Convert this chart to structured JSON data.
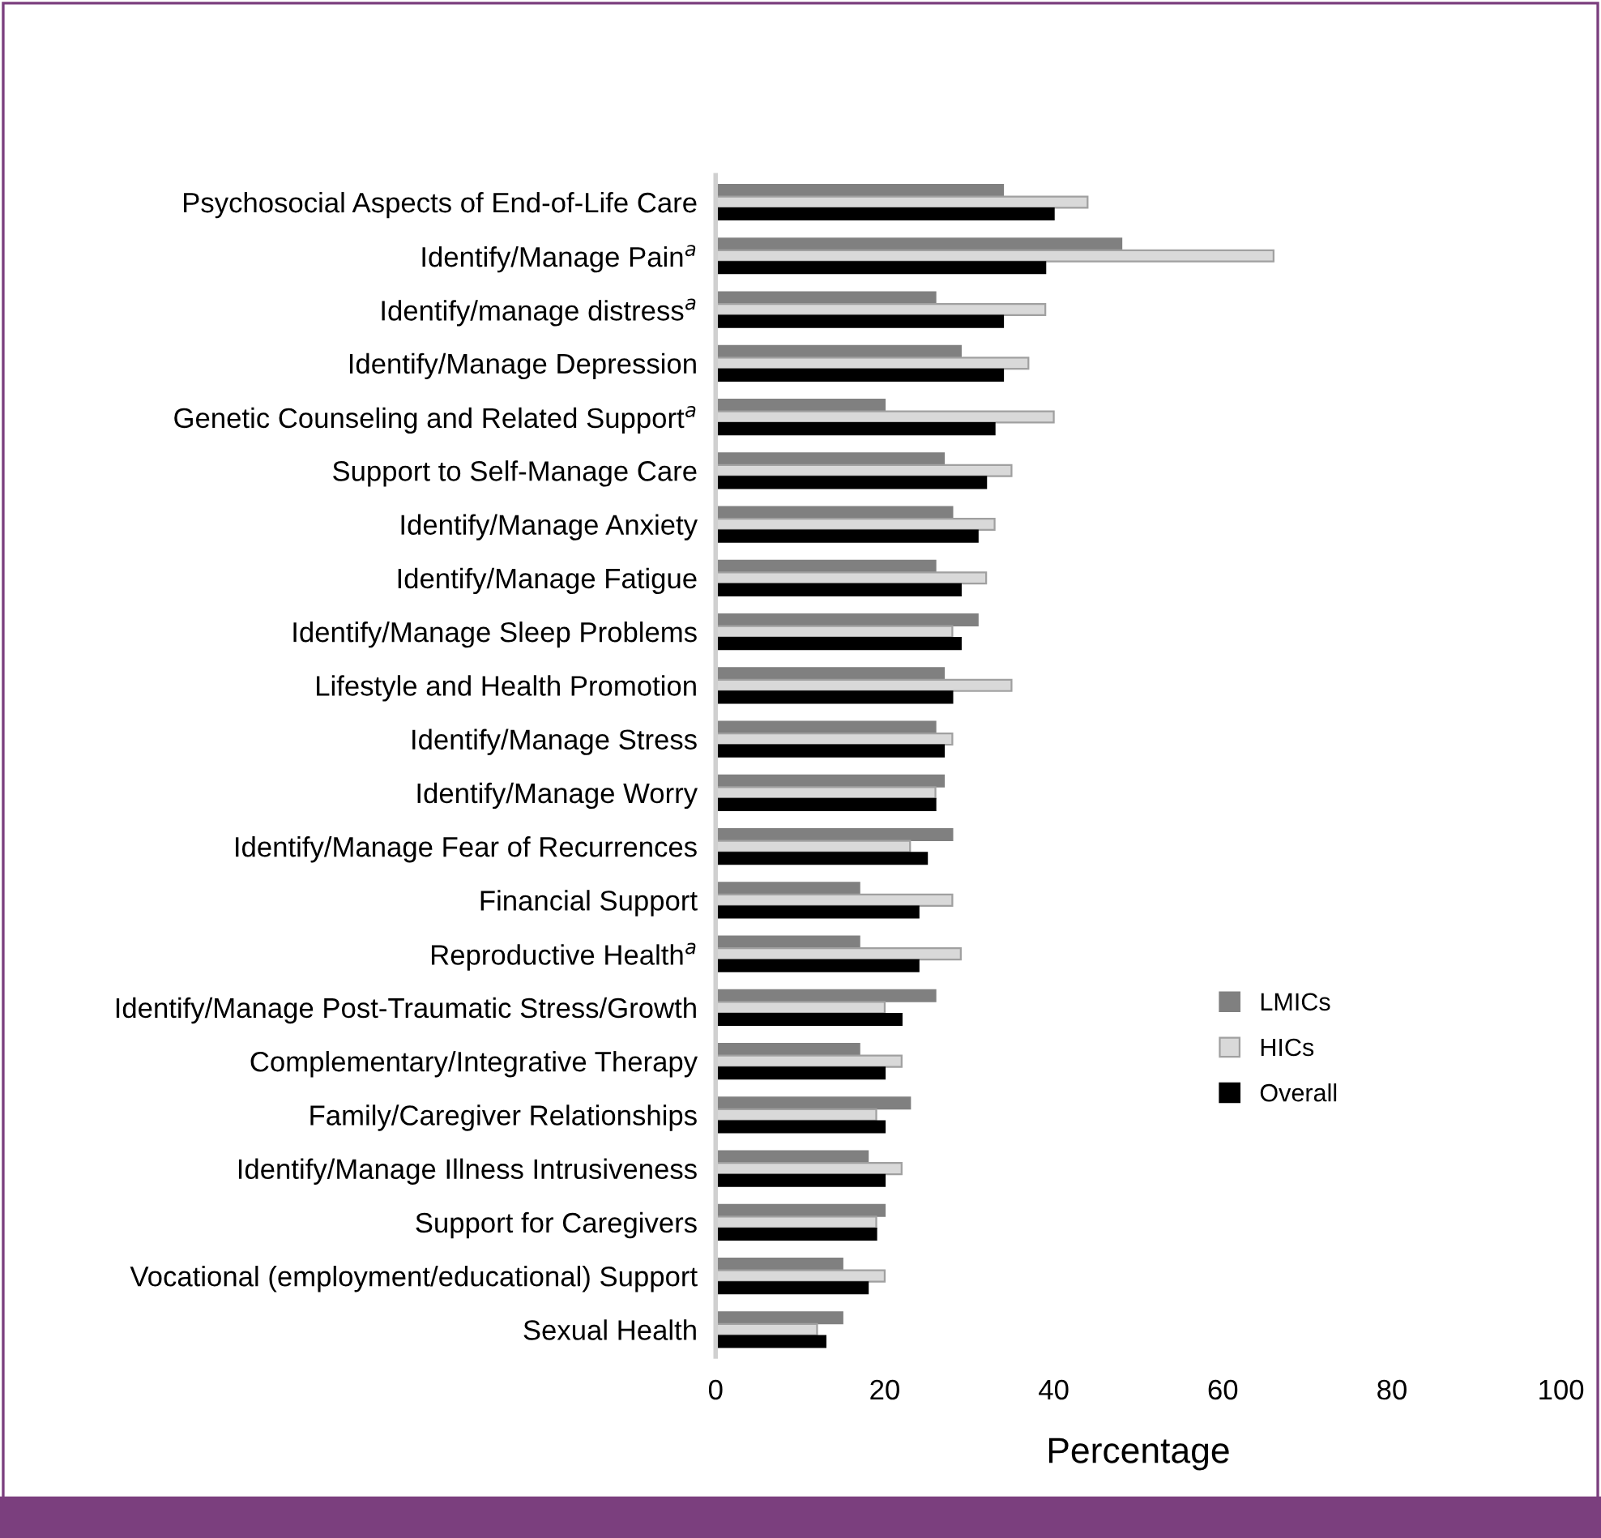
{
  "chart_data": {
    "type": "bar",
    "orientation": "horizontal",
    "xlabel": "Percentage",
    "categories": [
      "Psychosocial Aspects of End-of-Life Care",
      "Identify/Manage Pain$^{a}$",
      "Identify/manage distress$^{a}$",
      "Identify/Manage Depression",
      "Genetic Counseling and Related Support$^{a}$",
      "Support to Self-Manage Care",
      "Identify/Manage Anxiety",
      "Identify/Manage Fatigue",
      "Identify/Manage Sleep Problems",
      "Lifestyle and Health Promotion",
      "Identify/Manage Stress",
      "Identify/Manage Worry",
      "Identify/Manage Fear of Recurrences",
      "Financial Support",
      "Reproductive Health$^{a}$",
      "Identify/Manage Post-Traumatic Stress/Growth",
      "Complementary/Integrative Therapy",
      "Family/Caregiver Relationships",
      "Identify/Manage Illness Intrusiveness",
      "Support for Caregivers",
      "Vocational (employment/educational) Support",
      "Sexual Health"
    ],
    "series": [
      {
        "name": "LMICs",
        "color": "#808080",
        "values": [
          34,
          48,
          26,
          29,
          20,
          27,
          28,
          26,
          31,
          27,
          26,
          27,
          28,
          17,
          17,
          26,
          17,
          23,
          18,
          20,
          15,
          15
        ]
      },
      {
        "name": "HICs",
        "color": "#d9d9d9",
        "values": [
          44,
          66,
          39,
          37,
          40,
          35,
          33,
          32,
          28,
          35,
          28,
          26,
          23,
          28,
          29,
          20,
          22,
          19,
          22,
          19,
          20,
          12
        ]
      },
      {
        "name": "Overall",
        "color": "#000000",
        "values": [
          40,
          39,
          34,
          34,
          33,
          32,
          31,
          29,
          29,
          28,
          27,
          26,
          25,
          24,
          24,
          22,
          20,
          20,
          20,
          19,
          18,
          13
        ]
      }
    ],
    "xlim": [
      0,
      100
    ],
    "xticks": [
      0,
      20,
      40,
      60,
      80,
      100
    ],
    "grid": false,
    "legend": "right"
  }
}
